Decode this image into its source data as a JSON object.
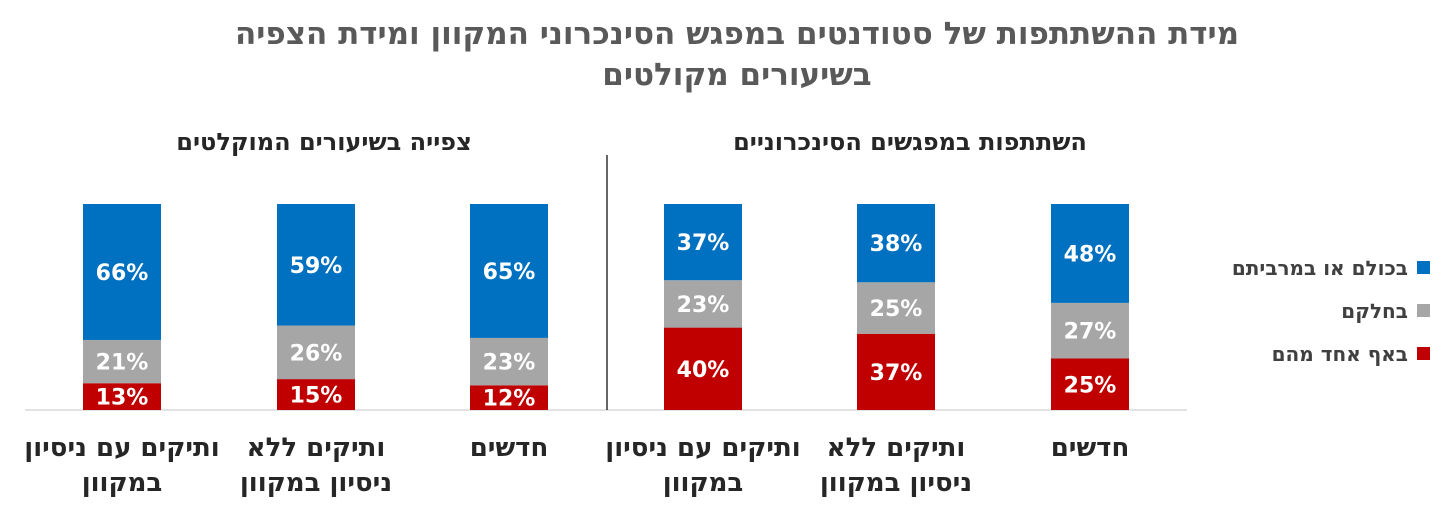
{
  "title_lines": [
    "מידת ההשתתפות של סטודנטים במפגש הסינכרוני המקוון ומידת הצפיה",
    "בשיעורים מקולטים"
  ],
  "chart_data": {
    "type": "bar",
    "stacked": true,
    "value_unit": "%",
    "legend_position": "right",
    "legend": [
      {
        "key": "all",
        "label": "בכולם או במרביתם",
        "color": "#0070C0"
      },
      {
        "key": "some",
        "label": "בחלקם",
        "color": "#A6A6A6"
      },
      {
        "key": "none",
        "label": "באף אחד מהם",
        "color": "#C00000"
      }
    ],
    "groups": [
      {
        "title": "השתתפות במפגשים הסינכרוניים",
        "categories": [
          {
            "label_lines": [
              "חדשים"
            ],
            "values": {
              "none": 25,
              "some": 27,
              "all": 48
            }
          },
          {
            "label_lines": [
              "ותיקים ללא",
              "ניסיון במקוון"
            ],
            "values": {
              "none": 37,
              "some": 25,
              "all": 38
            }
          },
          {
            "label_lines": [
              "ותיקים עם ניסיון",
              "במקוון"
            ],
            "values": {
              "none": 40,
              "some": 23,
              "all": 37
            }
          }
        ]
      },
      {
        "title": "צפייה בשיעורים המוקלטים",
        "categories": [
          {
            "label_lines": [
              "חדשים"
            ],
            "values": {
              "none": 12,
              "some": 23,
              "all": 65
            }
          },
          {
            "label_lines": [
              "ותיקים ללא",
              "ניסיון במקוון"
            ],
            "values": {
              "none": 15,
              "some": 26,
              "all": 59
            }
          },
          {
            "label_lines": [
              "ותיקים עם ניסיון",
              "במקוון"
            ],
            "values": {
              "none": 13,
              "some": 21,
              "all": 66
            }
          }
        ]
      }
    ]
  }
}
